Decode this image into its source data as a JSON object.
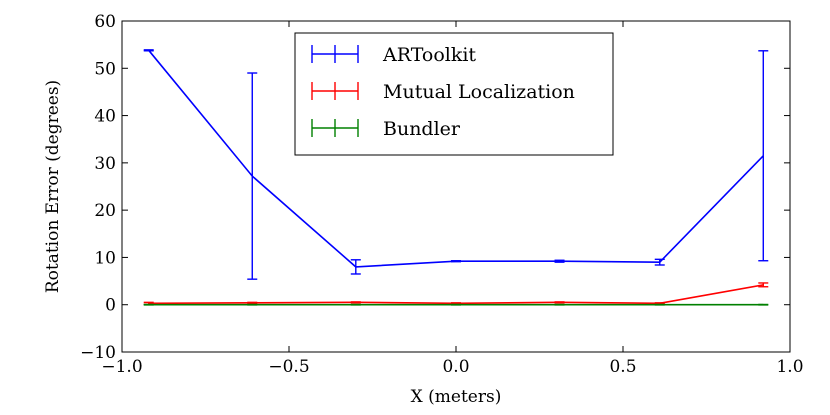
{
  "chart_data": {
    "type": "line",
    "xlabel": "X (meters)",
    "ylabel": "Rotation Error (degrees)",
    "xlim": [
      -1.0,
      1.0
    ],
    "ylim": [
      -10,
      60
    ],
    "xticks": [
      -1.0,
      -0.5,
      0.0,
      0.5,
      1.0
    ],
    "xtick_labels": [
      "−1.0",
      "−0.5",
      "0.0",
      "0.5",
      "1.0"
    ],
    "yticks": [
      -10,
      0,
      10,
      20,
      30,
      40,
      50,
      60
    ],
    "ytick_labels": [
      "−10",
      "0",
      "10",
      "20",
      "30",
      "40",
      "50",
      "60"
    ],
    "grid": false,
    "legend_position": "top-center",
    "series": [
      {
        "name": "ARToolkit",
        "color": "#0000ff",
        "x": [
          -0.92,
          -0.61,
          -0.3,
          0.0,
          0.31,
          0.61,
          0.92
        ],
        "y": [
          53.8,
          27.2,
          8.0,
          9.2,
          9.2,
          9.0,
          31.5
        ],
        "yerr": [
          0.1,
          21.8,
          1.5,
          0.1,
          0.2,
          0.6,
          22.2
        ]
      },
      {
        "name": "Mutual Localization",
        "color": "#ff0000",
        "x": [
          -0.92,
          -0.61,
          -0.3,
          0.0,
          0.31,
          0.61,
          0.92
        ],
        "y": [
          0.3,
          0.4,
          0.5,
          0.3,
          0.5,
          0.3,
          4.2
        ],
        "yerr": [
          0.2,
          0.1,
          0.1,
          0.1,
          0.1,
          0.1,
          0.4
        ]
      },
      {
        "name": "Bundler",
        "color": "#008000",
        "x": [
          -0.92,
          -0.61,
          -0.3,
          0.0,
          0.31,
          0.61,
          0.92
        ],
        "y": [
          0.0,
          0.0,
          0.0,
          0.0,
          0.0,
          0.0,
          0.0
        ],
        "yerr": [
          0.05,
          0.05,
          0.05,
          0.05,
          0.05,
          0.05,
          0.05
        ]
      }
    ]
  }
}
